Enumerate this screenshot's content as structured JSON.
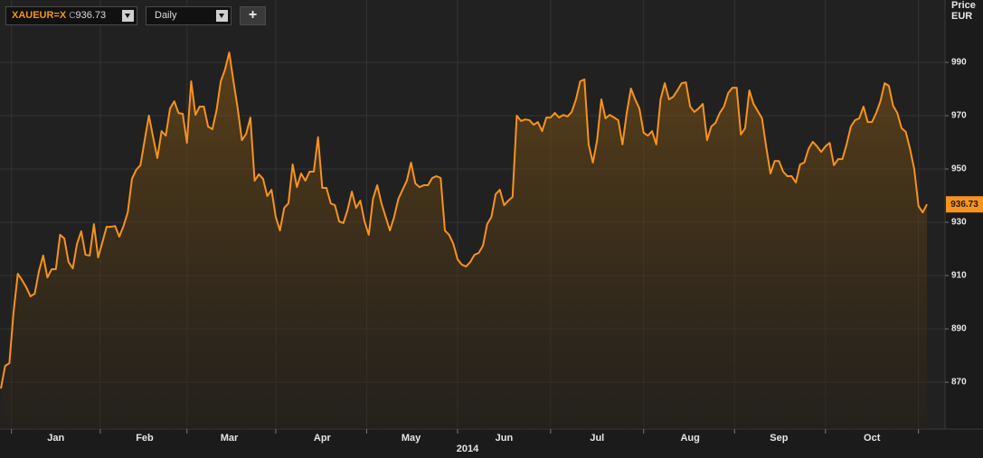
{
  "toolbar": {
    "symbol": "XAUEUR=X",
    "close_prefix": "C",
    "interval": "Daily",
    "add_button": "+"
  },
  "chart_data": {
    "type": "area",
    "y_axis_label": "Price",
    "y_axis_unit": "EUR",
    "year_label": "2014",
    "color": "#f7931e",
    "grid": true,
    "y_axis_side": "right",
    "ylim": [
      852.4,
      1013.4
    ],
    "yticks": [
      870,
      890,
      910,
      930,
      950,
      970,
      990
    ],
    "categories": [
      null,
      null,
      null,
      null,
      null,
      null,
      null,
      null,
      null,
      null,
      null,
      null,
      null,
      "Jan",
      null,
      null,
      null,
      null,
      null,
      null,
      null,
      null,
      null,
      null,
      null,
      null,
      null,
      null,
      null,
      null,
      null,
      null,
      null,
      null,
      "Feb",
      null,
      null,
      null,
      null,
      null,
      null,
      null,
      null,
      null,
      null,
      null,
      null,
      null,
      null,
      null,
      null,
      null,
      null,
      null,
      "Mar",
      null,
      null,
      null,
      null,
      null,
      null,
      null,
      null,
      null,
      null,
      null,
      null,
      null,
      null,
      null,
      null,
      null,
      null,
      null,
      null,
      null,
      "Apr",
      null,
      null,
      null,
      null,
      null,
      null,
      null,
      null,
      null,
      null,
      null,
      null,
      null,
      null,
      null,
      null,
      null,
      null,
      null,
      null,
      "May",
      null,
      null,
      null,
      null,
      null,
      null,
      null,
      null,
      null,
      null,
      null,
      null,
      null,
      null,
      null,
      null,
      null,
      null,
      null,
      null,
      null,
      "Jun",
      null,
      null,
      null,
      null,
      null,
      null,
      null,
      null,
      null,
      null,
      null,
      null,
      null,
      null,
      null,
      null,
      null,
      null,
      null,
      null,
      null,
      "Jul",
      null,
      null,
      null,
      null,
      null,
      null,
      null,
      null,
      null,
      null,
      null,
      null,
      null,
      null,
      null,
      null,
      null,
      null,
      null,
      null,
      null,
      "Aug",
      null,
      null,
      null,
      null,
      null,
      null,
      null,
      null,
      null,
      null,
      null,
      null,
      null,
      null,
      null,
      null,
      null,
      null,
      null,
      null,
      "Sep",
      null,
      null,
      null,
      null,
      null,
      null,
      null,
      null,
      null,
      null,
      null,
      null,
      null,
      null,
      null,
      null,
      null,
      null,
      null,
      null,
      null,
      "Oct",
      null,
      null,
      null,
      null,
      null,
      null,
      null,
      null,
      null,
      null,
      null,
      null,
      null
    ],
    "values": [
      867.6,
      876.1,
      877.1,
      896.4,
      910.7,
      908.3,
      905.6,
      902.2,
      903.2,
      911.7,
      917.5,
      909.3,
      912.4,
      912.4,
      925.3,
      923.9,
      915.1,
      912.7,
      921.9,
      926.6,
      917.8,
      917.5,
      929.3,
      916.8,
      922.5,
      928.3,
      928.3,
      928.6,
      924.6,
      928.6,
      933.7,
      946.3,
      949.7,
      951.4,
      960.8,
      970.0,
      961.9,
      954.1,
      964.2,
      962.5,
      972.7,
      975.4,
      971.0,
      970.7,
      959.8,
      982.9,
      970.3,
      973.4,
      973.4,
      965.9,
      964.9,
      972.0,
      982.9,
      987.3,
      993.7,
      982.9,
      972.7,
      960.8,
      963.2,
      969.3,
      945.6,
      948.0,
      946.3,
      939.8,
      942.2,
      932.0,
      926.9,
      935.4,
      937.1,
      951.7,
      943.2,
      948.3,
      945.6,
      949.0,
      949.0,
      961.9,
      942.9,
      942.9,
      937.1,
      936.4,
      930.3,
      929.7,
      934.7,
      941.5,
      935.4,
      938.1,
      930.3,
      925.3,
      938.8,
      943.9,
      937.1,
      932.0,
      926.9,
      932.0,
      938.8,
      942.2,
      945.6,
      952.4,
      944.6,
      943.2,
      943.9,
      943.9,
      946.6,
      947.3,
      946.6,
      926.9,
      925.3,
      921.9,
      916.1,
      914.1,
      913.4,
      915.1,
      917.8,
      918.5,
      921.2,
      929.3,
      932.0,
      940.5,
      942.2,
      936.4,
      938.1,
      939.5,
      970.0,
      968.0,
      968.6,
      968.3,
      966.6,
      967.6,
      964.2,
      969.3,
      969.3,
      971.0,
      969.3,
      970.3,
      969.7,
      971.4,
      976.1,
      982.9,
      983.6,
      959.2,
      952.4,
      960.8,
      976.1,
      969.0,
      970.3,
      969.3,
      968.3,
      959.2,
      971.0,
      980.2,
      976.1,
      972.7,
      963.6,
      962.5,
      964.2,
      959.2,
      976.1,
      982.2,
      976.1,
      977.1,
      979.5,
      982.2,
      982.5,
      973.4,
      971.4,
      972.7,
      974.4,
      960.8,
      965.9,
      967.3,
      971.0,
      973.4,
      978.5,
      980.5,
      980.5,
      962.9,
      965.3,
      979.5,
      974.4,
      971.7,
      969.0,
      958.1,
      948.3,
      953.0,
      953.0,
      949.0,
      947.3,
      947.3,
      944.9,
      951.7,
      952.4,
      957.5,
      960.2,
      958.5,
      956.4,
      958.5,
      959.8,
      951.4,
      953.7,
      953.7,
      959.2,
      965.9,
      968.3,
      969.0,
      973.4,
      967.6,
      967.6,
      971.0,
      975.4,
      982.2,
      981.2,
      973.7,
      971.0,
      965.3,
      963.9,
      957.5,
      950.0,
      936.1,
      933.7,
      936.73
    ]
  }
}
